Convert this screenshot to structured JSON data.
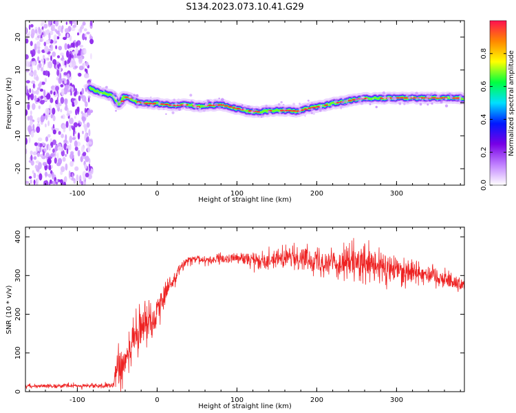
{
  "figure": {
    "title": "S134.2023.073.10.41.G29"
  },
  "chart_data": [
    {
      "type": "heatmap",
      "title": "S134.2023.073.10.41.G29",
      "xlabel": "Height of straight line (km)",
      "ylabel": "Frequency (Hz)",
      "xlim": [
        -165,
        385
      ],
      "ylim": [
        -25,
        25
      ],
      "xticks": [
        -100,
        0,
        100,
        200,
        300
      ],
      "yticks": [
        -20,
        -10,
        0,
        10,
        20
      ],
      "noise_region_end_x": -82,
      "ridge": {
        "x": [
          -84,
          -75,
          -65,
          -55,
          -48,
          -42,
          -35,
          -25,
          -15,
          0,
          20,
          40,
          50,
          60,
          80,
          95,
          110,
          125,
          140,
          160,
          175,
          190,
          205,
          220,
          235,
          250,
          265,
          300,
          330,
          360,
          385
        ],
        "y": [
          4.5,
          3.5,
          3.0,
          2.0,
          -0.8,
          1.8,
          1.5,
          0.3,
          -0.2,
          -0.2,
          -0.8,
          -0.5,
          -1.2,
          -0.8,
          -0.6,
          -1.5,
          -2.3,
          -2.7,
          -2.4,
          -2.3,
          -2.5,
          -1.6,
          -1.0,
          -0.1,
          0.4,
          1.2,
          1.4,
          1.5,
          1.5,
          1.5,
          1.4
        ]
      },
      "colorbar": {
        "label": "Normalized spectral amplitude",
        "range": [
          0,
          1
        ],
        "ticks": [
          0.0,
          0.2,
          0.4,
          0.6,
          0.8
        ],
        "colors": [
          "#ffffff",
          "#c080ff",
          "#7800e6",
          "#0018ff",
          "#00e0ff",
          "#00ff40",
          "#ffff00",
          "#ff8800",
          "#ff1050"
        ]
      }
    },
    {
      "type": "line",
      "xlabel": "Height of straight line (km)",
      "ylabel": "SNR (10 * v/v)",
      "xlim": [
        -165,
        385
      ],
      "ylim": [
        0,
        425
      ],
      "xticks": [
        -100,
        0,
        100,
        200,
        300
      ],
      "yticks": [
        0,
        100,
        200,
        300,
        400
      ],
      "color": "#ee2222",
      "envelope": {
        "x": [
          -165,
          -55,
          -50,
          -45,
          -40,
          -30,
          -20,
          -10,
          0,
          10,
          20,
          25,
          30,
          40,
          60,
          80,
          100,
          120,
          140,
          160,
          180,
          200,
          220,
          240,
          260,
          280,
          300,
          320,
          340,
          360,
          385
        ],
        "mean": [
          15,
          15,
          60,
          70,
          95,
          125,
          160,
          185,
          210,
          250,
          285,
          305,
          325,
          340,
          340,
          342,
          345,
          340,
          342,
          345,
          347,
          340,
          335,
          332,
          325,
          320,
          315,
          312,
          305,
          292,
          275
        ],
        "spread": [
          5,
          6,
          55,
          70,
          60,
          60,
          60,
          55,
          45,
          30,
          20,
          15,
          12,
          12,
          12,
          13,
          15,
          20,
          22,
          25,
          28,
          32,
          38,
          45,
          50,
          45,
          40,
          35,
          30,
          25,
          20
        ]
      }
    }
  ]
}
